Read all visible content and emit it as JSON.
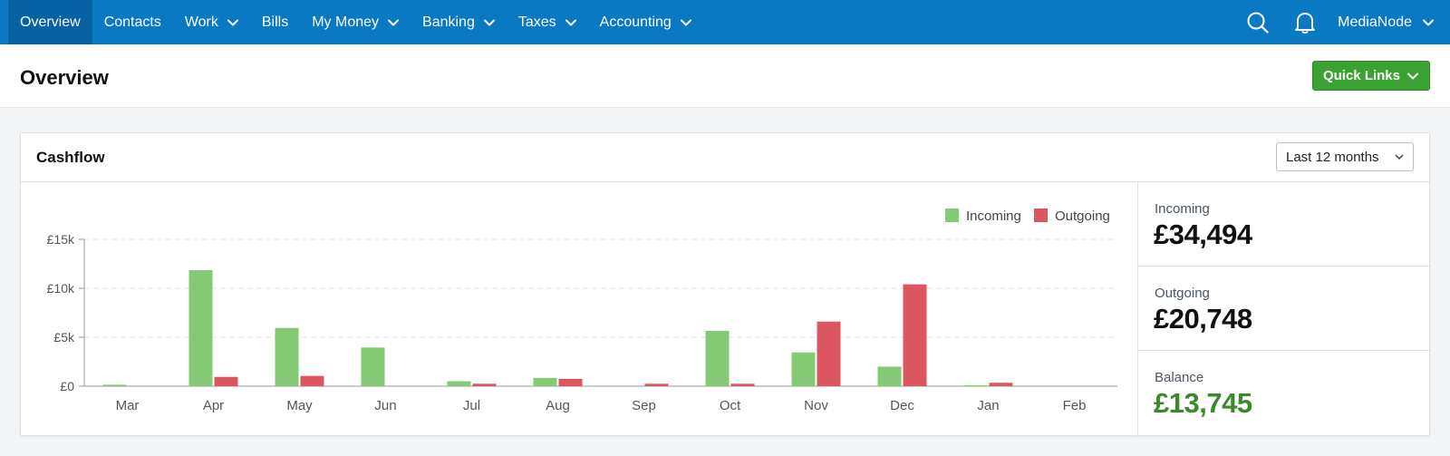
{
  "nav": {
    "items": [
      {
        "label": "Overview",
        "dropdown": false,
        "active": true
      },
      {
        "label": "Contacts",
        "dropdown": false,
        "active": false
      },
      {
        "label": "Work",
        "dropdown": true,
        "active": false
      },
      {
        "label": "Bills",
        "dropdown": false,
        "active": false
      },
      {
        "label": "My Money",
        "dropdown": true,
        "active": false
      },
      {
        "label": "Banking",
        "dropdown": true,
        "active": false
      },
      {
        "label": "Taxes",
        "dropdown": true,
        "active": false
      },
      {
        "label": "Accounting",
        "dropdown": true,
        "active": false
      }
    ],
    "search_icon": "search-icon",
    "notifications_icon": "bell-icon",
    "account_label": "MediaNode"
  },
  "page": {
    "title": "Overview",
    "quick_links_label": "Quick Links"
  },
  "cashflow": {
    "title": "Cashflow",
    "period": "Last 12 months",
    "stats": [
      {
        "label": "Incoming",
        "value": "£34,494",
        "color": "#111111"
      },
      {
        "label": "Outgoing",
        "value": "£20,748",
        "color": "#111111"
      },
      {
        "label": "Balance",
        "value": "£13,745",
        "color": "#3a8a2c"
      }
    ]
  },
  "colors": {
    "nav_bg": "#0a78c2",
    "incoming": "#84c973",
    "outgoing": "#dc5660",
    "quick_links_bg": "#3aa232",
    "balance": "#3a8a2c"
  },
  "chart_data": {
    "type": "bar",
    "title": "",
    "categories": [
      "Mar",
      "Apr",
      "May",
      "Jun",
      "Jul",
      "Aug",
      "Sep",
      "Oct",
      "Nov",
      "Dec",
      "Jan",
      "Feb"
    ],
    "series": [
      {
        "name": "Incoming",
        "values": [
          150,
          11850,
          5950,
          3950,
          500,
          850,
          0,
          5650,
          3450,
          2000,
          100,
          0
        ]
      },
      {
        "name": "Outgoing",
        "values": [
          0,
          950,
          1050,
          0,
          250,
          750,
          250,
          250,
          6600,
          10400,
          350,
          0
        ]
      }
    ],
    "yticks": [
      "£0",
      "£5k",
      "£10k",
      "£15k"
    ],
    "ytick_values": [
      0,
      5000,
      10000,
      15000
    ],
    "ylim": [
      0,
      15000
    ],
    "legend": "top-right",
    "grid": true
  }
}
